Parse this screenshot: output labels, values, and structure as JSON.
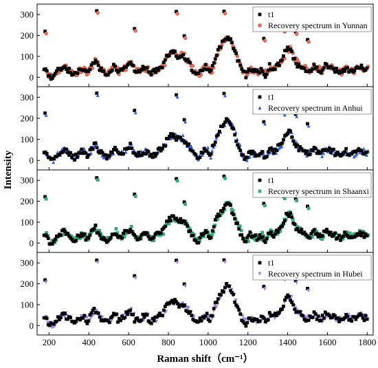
{
  "chart_data": {
    "type": "scatter",
    "xlabel": "Raman shift（cm⁻¹）",
    "ylabel": "Intensity",
    "xlim": [
      140,
      1830
    ],
    "ylim": [
      -45,
      350
    ],
    "x_ticks": [
      200,
      400,
      600,
      800,
      1000,
      1200,
      1400,
      1600,
      1800
    ],
    "y_ticks": [
      0,
      100,
      200,
      300
    ],
    "x_tick_labels": [
      "200",
      "400",
      "600",
      "800",
      "1000",
      "1200",
      "1400",
      "1600",
      "1800"
    ],
    "y_tick_labels": [
      "0",
      "100",
      "200",
      "300"
    ],
    "legend_position": "top-right",
    "reference_profile": {
      "x": [
        170,
        185,
        200,
        215,
        230,
        250,
        270,
        290,
        310,
        330,
        350,
        370,
        390,
        410,
        430,
        450,
        470,
        490,
        510,
        530,
        550,
        570,
        590,
        610,
        630,
        650,
        670,
        690,
        710,
        730,
        750,
        770,
        790,
        810,
        830,
        850,
        870,
        890,
        910,
        930,
        950,
        970,
        990,
        1010,
        1030,
        1050,
        1070,
        1090,
        1110,
        1130,
        1150,
        1170,
        1190,
        1210,
        1230,
        1250,
        1270,
        1290,
        1310,
        1330,
        1350,
        1370,
        1390,
        1410,
        1430,
        1450,
        1470,
        1490,
        1510,
        1530,
        1550,
        1570,
        1590,
        1610,
        1630,
        1650,
        1670,
        1690,
        1710,
        1730,
        1750,
        1770,
        1790,
        1805
      ],
      "y": [
        60,
        30,
        5,
        0,
        20,
        35,
        55,
        40,
        25,
        10,
        35,
        45,
        20,
        50,
        80,
        45,
        25,
        15,
        30,
        60,
        20,
        40,
        55,
        70,
        30,
        25,
        40,
        45,
        15,
        30,
        45,
        55,
        90,
        120,
        115,
        100,
        110,
        80,
        60,
        20,
        10,
        40,
        55,
        20,
        85,
        130,
        160,
        190,
        180,
        130,
        80,
        30,
        10,
        40,
        30,
        20,
        40,
        10,
        55,
        40,
        60,
        80,
        130,
        140,
        90,
        60,
        55,
        35,
        30,
        55,
        40,
        30,
        55,
        50,
        40,
        30,
        25,
        45,
        35,
        30,
        50,
        45,
        35,
        40
      ]
    },
    "outliers_x": [
      180,
      440,
      630,
      840,
      880,
      1080,
      1280,
      1310,
      1380,
      1440,
      1500
    ],
    "outliers_y": [
      225,
      320,
      240,
      315,
      200,
      320,
      190,
      250,
      230,
      220,
      180
    ],
    "series": [
      {
        "panel": 1,
        "name": "t1",
        "marker": "square",
        "color": "#000000"
      },
      {
        "panel": 1,
        "name": "Recovery spectrum in Yunnan",
        "marker": "circle",
        "color": "#e2725b"
      },
      {
        "panel": 2,
        "name": "t1",
        "marker": "square",
        "color": "#000000"
      },
      {
        "panel": 2,
        "name": "Recovery spectrum in Anhui",
        "marker": "triangle-up",
        "color": "#2f5fd0"
      },
      {
        "panel": 3,
        "name": "t1",
        "marker": "square",
        "color": "#000000"
      },
      {
        "panel": 3,
        "name": "Recovery spectrum in Shaanxi",
        "marker": "square",
        "color": "#3aa878"
      },
      {
        "panel": 4,
        "name": "t1",
        "marker": "square",
        "color": "#000000"
      },
      {
        "panel": 4,
        "name": "Recovery spectrum in Hubei",
        "marker": "triangle-down",
        "color": "#a07de0"
      }
    ]
  }
}
